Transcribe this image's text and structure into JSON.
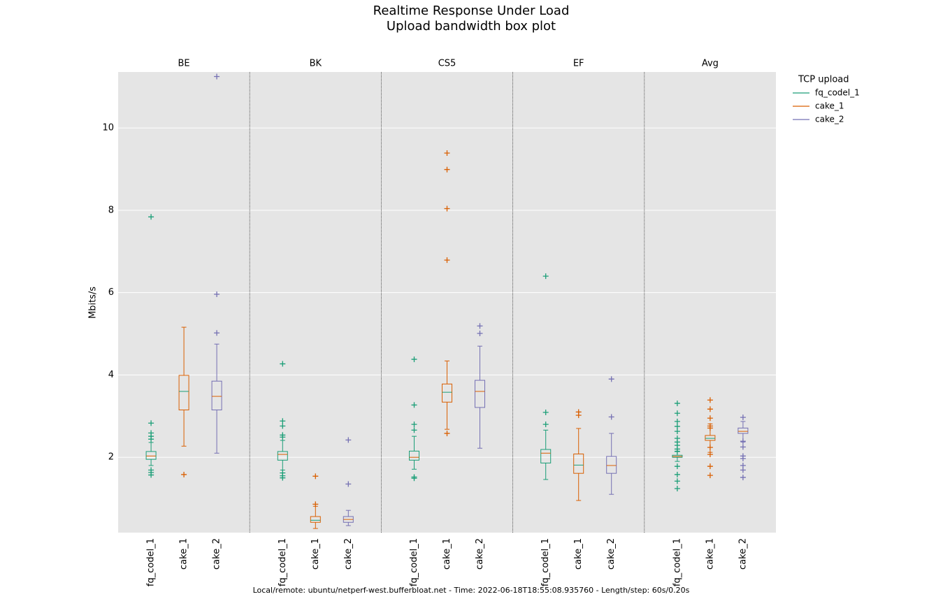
{
  "chart_data": {
    "type": "box",
    "title": "Realtime Response Under Load",
    "subtitle": "Upload bandwidth box plot",
    "ylabel": "Mbits/s",
    "footer": "Local/remote: ubuntu/netperf-west.bufferbloat.net - Time: 2022-06-18T18:55:08.935760 - Length/step: 60s/0.20s",
    "legend_title": "TCP upload",
    "legend_loc": "upper right outside",
    "grid": true,
    "ylim": [
      0.17,
      11.36
    ],
    "yticks": [
      2,
      4,
      6,
      8,
      10
    ],
    "groups": [
      "BE",
      "BK",
      "CS5",
      "EF",
      "Avg"
    ],
    "series": [
      {
        "name": "fq_codel_1",
        "color": "#1b9e77",
        "boxes": [
          {
            "whislo": 1.8,
            "q1": 1.95,
            "med": 2.03,
            "q3": 2.14,
            "whishi": 2.36,
            "fliers": [
              7.84,
              2.83,
              2.59,
              2.51,
              2.44,
              1.69,
              1.63,
              1.57
            ]
          },
          {
            "whislo": 1.69,
            "q1": 1.93,
            "med": 2.07,
            "q3": 2.14,
            "whishi": 2.41,
            "fliers": [
              4.27,
              2.88,
              2.76,
              2.54,
              2.49,
              1.62,
              1.55,
              1.5
            ]
          },
          {
            "whislo": 1.71,
            "q1": 1.93,
            "med": 2.0,
            "q3": 2.15,
            "whishi": 2.51,
            "fliers": [
              4.38,
              3.27,
              2.8,
              2.66,
              1.52,
              1.49
            ]
          },
          {
            "whislo": 1.46,
            "q1": 1.86,
            "med": 2.1,
            "q3": 2.19,
            "whishi": 2.66,
            "fliers": [
              6.4,
              3.09,
              2.8
            ]
          },
          {
            "whislo": 1.9,
            "q1": 2.0,
            "med": 2.02,
            "q3": 2.05,
            "whishi": 2.15,
            "fliers": [
              3.31,
              3.07,
              2.87,
              2.75,
              2.63,
              2.46,
              2.37,
              2.29,
              2.2,
              2.14,
              1.78,
              1.58,
              1.42,
              1.24
            ]
          }
        ]
      },
      {
        "name": "cake_1",
        "color": "#d95f02",
        "boxes": [
          {
            "whislo": 2.27,
            "q1": 3.15,
            "med": 3.6,
            "q3": 3.99,
            "whishi": 5.16,
            "fliers": [
              1.58
            ]
          },
          {
            "whislo": 0.27,
            "q1": 0.42,
            "med": 0.47,
            "q3": 0.56,
            "whishi": 0.81,
            "fliers": [
              1.54,
              0.86
            ]
          },
          {
            "whislo": 2.68,
            "q1": 3.34,
            "med": 3.58,
            "q3": 3.78,
            "whishi": 4.34,
            "fliers": [
              9.39,
              8.99,
              8.04,
              6.79,
              2.58
            ]
          },
          {
            "whislo": 0.95,
            "q1": 1.61,
            "med": 1.81,
            "q3": 2.08,
            "whishi": 2.7,
            "fliers": [
              3.1,
              3.02
            ]
          },
          {
            "whislo": 2.12,
            "q1": 2.41,
            "med": 2.46,
            "q3": 2.53,
            "whishi": 2.81,
            "fliers": [
              3.39,
              3.17,
              2.95,
              2.76,
              2.71,
              2.24,
              2.07,
              1.78,
              1.56
            ]
          }
        ]
      },
      {
        "name": "cake_2",
        "color": "#7570b3",
        "boxes": [
          {
            "whislo": 2.1,
            "q1": 3.15,
            "med": 3.48,
            "q3": 3.85,
            "whishi": 4.75,
            "fliers": [
              11.25,
              5.96,
              5.02
            ]
          },
          {
            "whislo": 0.34,
            "q1": 0.42,
            "med": 0.49,
            "q3": 0.56,
            "whishi": 0.71,
            "fliers": [
              2.42,
              1.35
            ]
          },
          {
            "whislo": 2.22,
            "q1": 3.21,
            "med": 3.6,
            "q3": 3.87,
            "whishi": 4.7,
            "fliers": [
              5.19,
              5.01
            ]
          },
          {
            "whislo": 1.1,
            "q1": 1.61,
            "med": 1.8,
            "q3": 2.02,
            "whishi": 2.58,
            "fliers": [
              3.9,
              2.98
            ]
          },
          {
            "whislo": 2.37,
            "q1": 2.58,
            "med": 2.63,
            "q3": 2.71,
            "whishi": 2.87,
            "fliers": [
              2.97,
              2.39,
              2.25,
              2.03,
              1.97,
              1.8,
              1.69,
              1.51
            ]
          }
        ]
      }
    ]
  }
}
